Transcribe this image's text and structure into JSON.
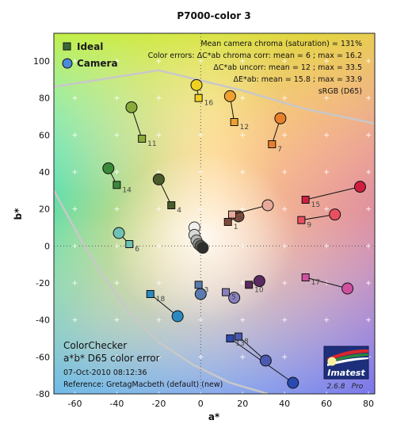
{
  "chart_data": {
    "type": "scatter",
    "title": "P7000-color 3",
    "xlabel": "a*",
    "ylabel": "b*",
    "xlim": [
      -70,
      83
    ],
    "ylim": [
      -80,
      115
    ],
    "xticks": [
      -60,
      -40,
      -20,
      0,
      20,
      40,
      60,
      80
    ],
    "yticks": [
      -80,
      -60,
      -40,
      -20,
      0,
      20,
      40,
      60,
      80,
      100
    ],
    "legend": {
      "position": "top-left",
      "items": [
        {
          "label": "Ideal",
          "marker": "square",
          "color": "#3a6a3a"
        },
        {
          "label": "Camera",
          "marker": "circle",
          "color": "#4a8ad8"
        }
      ]
    },
    "stats": [
      "Mean camera chroma (saturation) = 131%",
      "Color errors: ΔC*ab chroma corr:  mean = 6 ;  max = 16.2",
      "ΔC*ab uncorr:  mean = 12 ;  max = 33.5",
      "ΔE*ab:  mean = 15.8 ;  max = 33.9",
      "sRGB (D65)"
    ],
    "footer": {
      "line1": "ColorChecker",
      "line2": "a*b* D65 color error",
      "date": "07-Oct-2010 08:12:36",
      "reference": "Reference: GretagMacbeth (default) (new)"
    },
    "badge": {
      "name": "Imatest",
      "version": "2.6.8",
      "edition": "Pro"
    },
    "gamut_boundary": [
      [
        -70,
        30
      ],
      [
        -58,
        5
      ],
      [
        -48,
        -14
      ],
      [
        -34,
        -36
      ],
      [
        -20,
        -52
      ],
      [
        -4,
        -64
      ],
      [
        14,
        -74
      ],
      [
        32,
        -80
      ]
    ],
    "gamut_top": [
      [
        -70,
        86
      ],
      [
        -20,
        95
      ],
      [
        20,
        84
      ],
      [
        50,
        74
      ],
      [
        80,
        67
      ],
      [
        83,
        66
      ]
    ],
    "patches": [
      {
        "id": "1",
        "ideal": [
          13,
          13
        ],
        "camera": [
          18,
          16
        ],
        "color": "#7d4a3a"
      },
      {
        "id": "2",
        "ideal": [
          15,
          17
        ],
        "camera": [
          32,
          22
        ],
        "color": "#e7a99a"
      },
      {
        "id": "4",
        "ideal": [
          -14,
          22
        ],
        "camera": [
          -20,
          36
        ],
        "color": "#4a5c2a"
      },
      {
        "id": "6",
        "ideal": [
          -34,
          1
        ],
        "camera": [
          -39,
          7
        ],
        "color": "#6ec2b4"
      },
      {
        "id": "7",
        "ideal": [
          34,
          55
        ],
        "camera": [
          38,
          69
        ],
        "color": "#e8802a"
      },
      {
        "id": "9",
        "ideal": [
          48,
          14
        ],
        "camera": [
          64,
          17
        ],
        "color": "#e85060"
      },
      {
        "id": "10",
        "ideal": [
          23,
          -21
        ],
        "camera": [
          28,
          -19
        ],
        "color": "#5a2a60"
      },
      {
        "id": "11",
        "ideal": [
          -28,
          58
        ],
        "camera": [
          -33,
          75
        ],
        "color": "#8aaa3a"
      },
      {
        "id": "12",
        "ideal": [
          16,
          67
        ],
        "camera": [
          14,
          81
        ],
        "color": "#f0a030"
      },
      {
        "id": "13",
        "ideal": [
          14,
          -50
        ],
        "camera": [
          44,
          -74
        ],
        "color": "#2a4ab0"
      },
      {
        "id": "14",
        "ideal": [
          -40,
          33
        ],
        "camera": [
          -44,
          42
        ],
        "color": "#3a8a3a"
      },
      {
        "id": "15",
        "ideal": [
          50,
          25
        ],
        "camera": [
          76,
          32
        ],
        "color": "#d02040"
      },
      {
        "id": "16",
        "ideal": [
          -1,
          80
        ],
        "camera": [
          -2,
          87
        ],
        "color": "#f0d020"
      },
      {
        "id": "17",
        "ideal": [
          50,
          -17
        ],
        "camera": [
          70,
          -23
        ],
        "color": "#d050a0"
      },
      {
        "id": "18",
        "ideal": [
          -24,
          -26
        ],
        "camera": [
          -11,
          -38
        ],
        "color": "#2a8ac0"
      },
      {
        "id": "3",
        "ideal": [
          -1,
          -21
        ],
        "camera": [
          0,
          -26
        ],
        "color": "#5a7ab0"
      },
      {
        "id": "5",
        "ideal": [
          12,
          -25
        ],
        "camera": [
          16,
          -28
        ],
        "color": "#8a80c0"
      },
      {
        "id": "8",
        "ideal": [
          18,
          -49
        ],
        "camera": [
          31,
          -62
        ],
        "color": "#4a5ab0"
      }
    ],
    "neutrals": [
      {
        "camera": [
          -3,
          10
        ],
        "color": "#f0f0ee"
      },
      {
        "camera": [
          -3,
          6
        ],
        "color": "#d8d8d6"
      },
      {
        "camera": [
          -2,
          3
        ],
        "color": "#b8b8b6"
      },
      {
        "camera": [
          -1,
          1
        ],
        "color": "#8a8a88"
      },
      {
        "camera": [
          0,
          0
        ],
        "color": "#5a5a58"
      },
      {
        "camera": [
          1,
          -1
        ],
        "color": "#2e2e2c"
      }
    ]
  }
}
